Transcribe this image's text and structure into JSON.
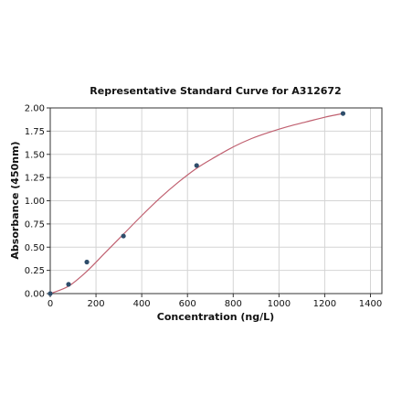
{
  "chart_data": {
    "type": "scatter",
    "title": "Representative Standard Curve for A312672",
    "xlabel": "Concentration (ng/L)",
    "ylabel": "Absorbance (450nm)",
    "xlim": [
      0,
      1450
    ],
    "ylim": [
      0,
      2.0
    ],
    "x_ticks": [
      0,
      200,
      400,
      600,
      800,
      1000,
      1200,
      1400
    ],
    "x_tick_labels": [
      "0",
      "200",
      "400",
      "600",
      "800",
      "1000",
      "1200",
      "1400"
    ],
    "y_ticks": [
      0,
      0.25,
      0.5,
      0.75,
      1.0,
      1.25,
      1.5,
      1.75,
      2.0
    ],
    "y_tick_labels": [
      "0.00",
      "0.25",
      "0.50",
      "0.75",
      "1.00",
      "1.25",
      "1.50",
      "1.75",
      "2.00"
    ],
    "grid": true,
    "series": [
      {
        "type": "scatter",
        "x": [
          0,
          80,
          160,
          320,
          640,
          1280
        ],
        "y": [
          0.0,
          0.1,
          0.34,
          0.62,
          1.38,
          1.94
        ],
        "color": "#2e4d6b"
      },
      {
        "type": "line",
        "curve": "4PL fit",
        "x": [
          0,
          80,
          160,
          240,
          320,
          400,
          480,
          560,
          640,
          720,
          800,
          880,
          960,
          1040,
          1120,
          1200,
          1280
        ],
        "y": [
          0.0,
          0.08,
          0.24,
          0.44,
          0.64,
          0.84,
          1.03,
          1.2,
          1.35,
          1.47,
          1.58,
          1.67,
          1.74,
          1.8,
          1.85,
          1.9,
          1.94
        ],
        "color": "#c06070"
      }
    ]
  }
}
